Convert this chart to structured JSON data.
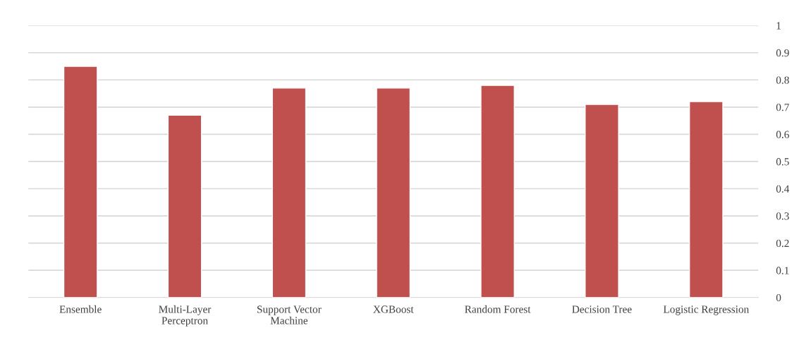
{
  "chart_data": {
    "type": "bar",
    "categories": [
      "Ensemble",
      "Multi-Layer\nPerceptron",
      "Support Vector\nMachine",
      "XGBoost",
      "Random Forest",
      "Decision Tree",
      "Logistic Regression"
    ],
    "values": [
      0.85,
      0.67,
      0.77,
      0.77,
      0.78,
      0.71,
      0.72
    ],
    "color": "#c0504d",
    "ylim": [
      0,
      1
    ],
    "yticks": [
      0,
      0.1,
      0.2,
      0.3,
      0.4,
      0.5,
      0.6,
      0.7,
      0.8,
      0.9,
      1
    ],
    "grid": "y"
  }
}
